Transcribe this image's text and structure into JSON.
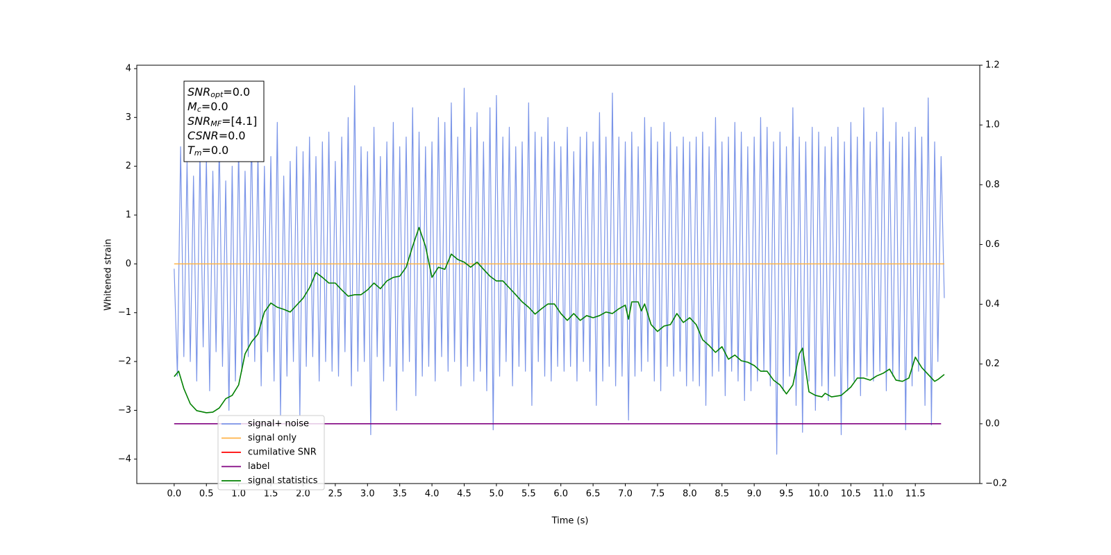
{
  "chart_data": {
    "type": "line",
    "xlabel": "Time (s)",
    "ylabel": "Whitened strain",
    "xlim": [
      -0.58,
      12.5
    ],
    "ylim": [
      -4.5,
      4.07
    ],
    "y2lim": [
      -0.2,
      1.2
    ],
    "xticks": [
      {
        "value": 0,
        "label": "0.0"
      },
      0.5,
      {
        "value": 1,
        "label": "1.0"
      },
      1.5,
      {
        "value": 2,
        "label": "2.0"
      },
      2.5,
      {
        "value": 3,
        "label": "3.0"
      },
      3.5,
      {
        "value": 4,
        "label": "4.0"
      },
      4.5,
      {
        "value": 5,
        "label": "5.0"
      },
      5.5,
      {
        "value": 6,
        "label": "6.0"
      },
      6.5,
      {
        "value": 7,
        "label": "7.0"
      },
      7.5,
      {
        "value": 8,
        "label": "8.0"
      },
      8.5,
      {
        "value": 9,
        "label": "9.0"
      },
      9.5,
      {
        "value": 10,
        "label": "10.0"
      },
      10.5,
      {
        "value": 11,
        "label": "11.0"
      },
      11.5
    ],
    "yticks": [
      {
        "value": -4,
        "label": "−4"
      },
      {
        "value": -3,
        "label": "−3"
      },
      {
        "value": -2,
        "label": "−2"
      },
      {
        "value": -1,
        "label": "−1"
      },
      0,
      1,
      2,
      3,
      4
    ],
    "y2ticks": [
      {
        "value": -0.2,
        "label": "−0.2"
      },
      {
        "value": 0,
        "label": "0.0"
      },
      0.2,
      0.4,
      0.6,
      0.8,
      {
        "value": 1,
        "label": "1.0"
      },
      1.2
    ],
    "legend": true,
    "annotation": [
      {
        "symbol": "SNR",
        "sub": "opt",
        "text": "=0.0"
      },
      {
        "symbol": "M",
        "sub": "c",
        "text": "=0.0"
      },
      {
        "symbol": "SNR",
        "sub": "MF",
        "text": "=[4.1]"
      },
      {
        "symbol": "CSNR",
        "text": "=0.0"
      },
      {
        "symbol": "T",
        "sub": "m",
        "text": "=0.0"
      }
    ],
    "series": [
      {
        "name": "signal+ noise",
        "color": "#7b95e8",
        "x": [
          0,
          0.05,
          0.1,
          0.15,
          0.2,
          0.25,
          0.3,
          0.35,
          0.4,
          0.45,
          0.5,
          0.55,
          0.6,
          0.65,
          0.7,
          0.75,
          0.8,
          0.85,
          0.9,
          0.95,
          1,
          1.05,
          1.1,
          1.15,
          1.2,
          1.25,
          1.3,
          1.35,
          1.4,
          1.45,
          1.5,
          1.55,
          1.6,
          1.65,
          1.7,
          1.75,
          1.8,
          1.85,
          1.9,
          1.95,
          2,
          2.05,
          2.1,
          2.15,
          2.2,
          2.25,
          2.3,
          2.35,
          2.4,
          2.45,
          2.5,
          2.55,
          2.6,
          2.65,
          2.7,
          2.75,
          2.8,
          2.85,
          2.9,
          2.95,
          3,
          3.05,
          3.1,
          3.15,
          3.2,
          3.25,
          3.3,
          3.35,
          3.4,
          3.45,
          3.5,
          3.55,
          3.6,
          3.65,
          3.7,
          3.75,
          3.8,
          3.85,
          3.9,
          3.95,
          4,
          4.05,
          4.1,
          4.15,
          4.2,
          4.25,
          4.3,
          4.35,
          4.4,
          4.45,
          4.5,
          4.55,
          4.6,
          4.65,
          4.7,
          4.75,
          4.8,
          4.85,
          4.9,
          4.95,
          5,
          5.05,
          5.1,
          5.15,
          5.2,
          5.25,
          5.3,
          5.35,
          5.4,
          5.45,
          5.5,
          5.55,
          5.6,
          5.65,
          5.7,
          5.75,
          5.8,
          5.85,
          5.9,
          5.95,
          6,
          6.05,
          6.1,
          6.15,
          6.2,
          6.25,
          6.3,
          6.35,
          6.4,
          6.45,
          6.5,
          6.55,
          6.6,
          6.65,
          6.7,
          6.75,
          6.8,
          6.85,
          6.9,
          6.95,
          7,
          7.05,
          7.1,
          7.15,
          7.2,
          7.25,
          7.3,
          7.35,
          7.4,
          7.45,
          7.5,
          7.55,
          7.6,
          7.65,
          7.7,
          7.75,
          7.8,
          7.85,
          7.9,
          7.95,
          8,
          8.05,
          8.1,
          8.15,
          8.2,
          8.25,
          8.3,
          8.35,
          8.4,
          8.45,
          8.5,
          8.55,
          8.6,
          8.65,
          8.7,
          8.75,
          8.8,
          8.85,
          8.9,
          8.95,
          9,
          9.05,
          9.1,
          9.15,
          9.2,
          9.25,
          9.3,
          9.35,
          9.4,
          9.45,
          9.5,
          9.55,
          9.6,
          9.65,
          9.7,
          9.75,
          9.8,
          9.85,
          9.9,
          9.95,
          10,
          10.05,
          10.1,
          10.15,
          10.2,
          10.25,
          10.3,
          10.35,
          10.4,
          10.45,
          10.5,
          10.55,
          10.6,
          10.65,
          10.7,
          10.75,
          10.8,
          10.85,
          10.9,
          10.95,
          11,
          11.05,
          11.1,
          11.15,
          11.2,
          11.25,
          11.3,
          11.35,
          11.4,
          11.45,
          11.5,
          11.55,
          11.6,
          11.65,
          11.7,
          11.75,
          11.8,
          11.85,
          11.9,
          11.95
        ],
        "values": [
          -0.1,
          -2.3,
          2.4,
          -1.9,
          2.1,
          -2.0,
          1.8,
          -2.4,
          2.3,
          -1.7,
          2.2,
          -2.6,
          1.9,
          -1.8,
          2.5,
          -2.1,
          1.7,
          -3.0,
          2.0,
          -2.4,
          2.4,
          -2.2,
          1.9,
          -1.9,
          2.7,
          -2.0,
          2.3,
          -2.5,
          2.0,
          -1.8,
          2.2,
          -2.4,
          2.9,
          -3.1,
          1.8,
          -2.3,
          2.1,
          -2.0,
          2.4,
          -3.1,
          2.3,
          -2.1,
          2.6,
          -1.9,
          2.2,
          -2.4,
          2.5,
          -2.0,
          2.7,
          -2.2,
          2.1,
          -2.3,
          2.6,
          -1.8,
          3.0,
          -2.5,
          3.65,
          -2.2,
          2.4,
          -2.0,
          2.3,
          -3.5,
          2.8,
          -1.9,
          2.2,
          -2.4,
          2.5,
          -2.1,
          2.9,
          -3.0,
          2.4,
          -2.2,
          2.6,
          -2.0,
          3.2,
          -2.7,
          2.7,
          -2.3,
          2.4,
          -2.1,
          2.5,
          -2.4,
          3.0,
          -1.9,
          2.9,
          -2.2,
          3.3,
          -2.0,
          2.6,
          -2.5,
          3.6,
          -2.1,
          2.8,
          -2.4,
          3.1,
          -2.2,
          2.5,
          -2.6,
          3.2,
          -3.4,
          3.45,
          -2.3,
          2.6,
          -2.0,
          2.8,
          -2.5,
          2.4,
          -2.1,
          2.5,
          -2.2,
          3.3,
          -2.9,
          2.7,
          -2.0,
          2.6,
          -2.3,
          3.0,
          -2.4,
          2.5,
          -2.1,
          2.4,
          -2.2,
          2.8,
          -2.1,
          2.3,
          -2.4,
          2.6,
          -2.0,
          2.7,
          -2.2,
          2.5,
          -2.9,
          3.1,
          -2.4,
          2.6,
          -2.1,
          3.5,
          -2.5,
          2.6,
          -2.3,
          2.5,
          -3.2,
          2.7,
          -2.3,
          2.4,
          -2.2,
          3.0,
          -2.0,
          2.8,
          -2.4,
          2.5,
          -2.6,
          2.9,
          -2.1,
          2.7,
          -2.3,
          2.4,
          -2.2,
          2.6,
          -2.5,
          2.5,
          -2.4,
          2.6,
          -2.5,
          2.7,
          -2.9,
          2.4,
          -2.3,
          3.0,
          -2.2,
          2.5,
          -2.7,
          2.6,
          -2.2,
          2.9,
          -2.4,
          2.7,
          -2.8,
          2.4,
          -2.6,
          2.6,
          -2.4,
          3.0,
          -2.2,
          2.8,
          -2.5,
          2.5,
          -3.9,
          2.7,
          -2.6,
          2.4,
          -2.3,
          3.2,
          -2.9,
          2.6,
          -3.45,
          2.5,
          -2.4,
          2.8,
          -3.0,
          2.7,
          -2.5,
          2.4,
          -2.8,
          2.6,
          -2.3,
          2.8,
          -3.5,
          2.5,
          -2.6,
          2.9,
          -2.4,
          2.6,
          -2.7,
          3.2,
          -2.3,
          2.5,
          -2.4,
          2.7,
          -2.2,
          3.2,
          -2.6,
          2.5,
          -2.3,
          2.9,
          -2.4,
          2.6,
          -3.4,
          2.7,
          -2.5,
          2.8,
          -2.2,
          2.6,
          -2.9,
          3.4,
          -3.3,
          2.5,
          -2.0,
          2.2,
          -0.7
        ]
      },
      {
        "name": "signal only",
        "color": "#ffb347",
        "x": [
          0,
          11.95
        ],
        "values": [
          0,
          0
        ]
      },
      {
        "name": "cumilative SNR",
        "color": "#ff0000",
        "x": [],
        "values": []
      },
      {
        "name": "label",
        "color": "#800080",
        "axis": "y2",
        "x": [
          0,
          11.9
        ],
        "values": [
          0,
          0
        ]
      },
      {
        "name": "signal statistics",
        "color": "#008000",
        "axis": "y2",
        "x": [
          0,
          0.07,
          0.15,
          0.25,
          0.35,
          0.5,
          0.6,
          0.7,
          0.8,
          0.9,
          1,
          1.1,
          1.2,
          1.3,
          1.4,
          1.5,
          1.6,
          1.7,
          1.8,
          1.9,
          2,
          2.1,
          2.2,
          2.3,
          2.4,
          2.5,
          2.6,
          2.7,
          2.8,
          2.9,
          3,
          3.1,
          3.2,
          3.3,
          3.4,
          3.5,
          3.6,
          3.7,
          3.8,
          3.9,
          4,
          4.1,
          4.2,
          4.3,
          4.4,
          4.5,
          4.6,
          4.7,
          4.8,
          4.9,
          5,
          5.1,
          5.2,
          5.3,
          5.4,
          5.5,
          5.6,
          5.7,
          5.8,
          5.9,
          6,
          6.1,
          6.2,
          6.3,
          6.4,
          6.5,
          6.6,
          6.7,
          6.8,
          6.9,
          7,
          7.05,
          7.1,
          7.2,
          7.25,
          7.3,
          7.4,
          7.5,
          7.6,
          7.7,
          7.8,
          7.9,
          8,
          8.1,
          8.2,
          8.3,
          8.4,
          8.5,
          8.6,
          8.7,
          8.8,
          8.9,
          9,
          9.1,
          9.2,
          9.3,
          9.4,
          9.5,
          9.6,
          9.7,
          9.75,
          9.85,
          9.95,
          10.05,
          10.1,
          10.2,
          10.35,
          10.5,
          10.6,
          10.7,
          10.8,
          10.9,
          11,
          11.1,
          11.2,
          11.3,
          11.4,
          11.5,
          11.6,
          11.7,
          11.8,
          11.85,
          11.95
        ],
        "values": [
          0.158,
          0.176,
          0.118,
          0.067,
          0.044,
          0.037,
          0.039,
          0.053,
          0.084,
          0.095,
          0.13,
          0.234,
          0.274,
          0.3,
          0.374,
          0.404,
          0.39,
          0.383,
          0.374,
          0.397,
          0.42,
          0.455,
          0.506,
          0.49,
          0.471,
          0.471,
          0.448,
          0.427,
          0.432,
          0.432,
          0.448,
          0.471,
          0.452,
          0.478,
          0.49,
          0.494,
          0.524,
          0.594,
          0.657,
          0.594,
          0.49,
          0.524,
          0.517,
          0.568,
          0.55,
          0.541,
          0.524,
          0.541,
          0.517,
          0.494,
          0.478,
          0.478,
          0.455,
          0.432,
          0.408,
          0.39,
          0.367,
          0.385,
          0.401,
          0.401,
          0.369,
          0.346,
          0.369,
          0.346,
          0.362,
          0.355,
          0.362,
          0.374,
          0.369,
          0.385,
          0.397,
          0.35,
          0.408,
          0.408,
          0.378,
          0.401,
          0.332,
          0.309,
          0.327,
          0.332,
          0.369,
          0.339,
          0.355,
          0.332,
          0.281,
          0.262,
          0.239,
          0.258,
          0.216,
          0.23,
          0.211,
          0.206,
          0.195,
          0.176,
          0.176,
          0.146,
          0.13,
          0.1,
          0.13,
          0.234,
          0.253,
          0.107,
          0.095,
          0.09,
          0.102,
          0.09,
          0.095,
          0.123,
          0.153,
          0.153,
          0.146,
          0.16,
          0.169,
          0.183,
          0.146,
          0.142,
          0.153,
          0.223,
          0.188,
          0.165,
          0.142,
          0.148,
          0.165
        ]
      }
    ]
  }
}
